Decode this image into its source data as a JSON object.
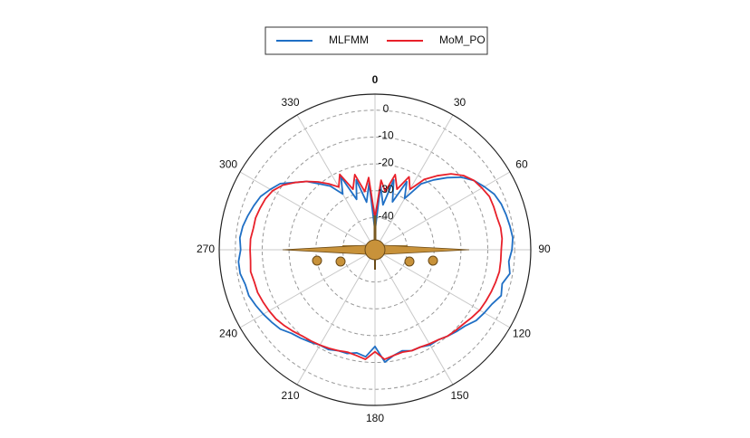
{
  "chart_data": {
    "type": "polar",
    "theta": [
      0,
      5,
      10,
      15,
      20,
      25,
      30,
      35,
      40,
      45,
      50,
      55,
      60,
      65,
      70,
      75,
      80,
      85,
      90,
      95,
      100,
      105,
      110,
      115,
      120,
      125,
      130,
      135,
      140,
      145,
      150,
      155,
      160,
      165,
      170,
      175,
      180,
      185,
      190,
      195,
      200,
      205,
      210,
      215,
      220,
      225,
      230,
      235,
      240,
      245,
      250,
      255,
      260,
      265,
      270,
      275,
      280,
      285,
      290,
      295,
      300,
      305,
      310,
      315,
      320,
      325,
      330,
      335,
      340,
      345,
      350,
      355
    ],
    "series": [
      {
        "name": "MLFMM",
        "color": "#1f6fc5",
        "values": [
          -45,
          -28,
          -35,
          -25,
          -33,
          -24,
          -30,
          -22,
          -18,
          -14,
          -10,
          -7,
          -5,
          -3,
          -2,
          -1.5,
          -1,
          -0.5,
          -1,
          -2,
          -1,
          -3,
          -2,
          -4,
          -5,
          -6,
          -8,
          -9,
          -10,
          -11,
          -11,
          -12,
          -12,
          -13,
          -12,
          -10,
          -16,
          -12,
          -13,
          -12,
          -12,
          -11,
          -11,
          -10,
          -9,
          -8,
          -6,
          -5,
          -4,
          -3,
          -2,
          -2,
          -1,
          -1,
          -2,
          -1.5,
          -2,
          -3,
          -4,
          -5,
          -7,
          -9,
          -13,
          -16,
          -20,
          -23,
          -28,
          -22,
          -32,
          -25,
          -34,
          -27
        ]
      },
      {
        "name": "MoM_PO",
        "color": "#e8202a",
        "values": [
          -40,
          -26,
          -30,
          -23,
          -28,
          -22,
          -26,
          -20,
          -16,
          -12,
          -9,
          -7,
          -6,
          -5,
          -5,
          -5,
          -4.5,
          -4.5,
          -5,
          -5,
          -5,
          -5.5,
          -6,
          -6.5,
          -7,
          -8,
          -9,
          -9.5,
          -10,
          -11,
          -11.5,
          -12,
          -12,
          -12.5,
          -12,
          -11,
          -14,
          -11,
          -12,
          -12.5,
          -12,
          -11.5,
          -11,
          -10.5,
          -10,
          -9,
          -8,
          -7,
          -6.5,
          -6,
          -5.5,
          -5.5,
          -5,
          -5.5,
          -5.5,
          -5.5,
          -6,
          -6,
          -6.5,
          -7,
          -8,
          -10,
          -13,
          -16,
          -19,
          -22,
          -25,
          -21,
          -28,
          -23,
          -30,
          -25
        ]
      }
    ],
    "rlim": [
      -52,
      6
    ],
    "rticks": [
      0,
      -10,
      -20,
      -30,
      -40
    ],
    "thetaticks": [
      0,
      30,
      60,
      90,
      120,
      150,
      180,
      210,
      240,
      270,
      300,
      330
    ],
    "legend": "top"
  }
}
